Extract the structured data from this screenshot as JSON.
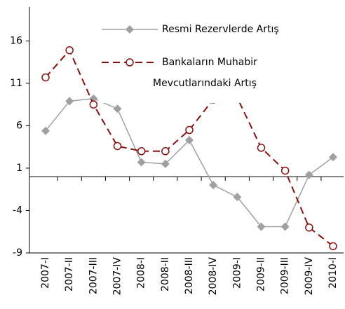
{
  "chart_data": {
    "type": "line",
    "categories": [
      "2007-I",
      "2007-II",
      "2007-III",
      "2007-IV",
      "2008-I",
      "2008-II",
      "2008-III",
      "2008-IV",
      "2009-I",
      "2009-II",
      "2009-III",
      "2009-IV",
      "2010-I"
    ],
    "series": [
      {
        "name": "Resmi Rezervlerde Artış",
        "color": "#a0a0a0",
        "values": [
          5.4,
          8.9,
          9.2,
          8.0,
          1.7,
          1.5,
          4.3,
          -1.0,
          -2.4,
          -5.9,
          -5.9,
          0.2,
          2.3
        ]
      },
      {
        "name": "Bankaların Muhabir Mevcutlarındaki Artış",
        "color": "#8b1010",
        "values": [
          11.7,
          14.9,
          8.5,
          3.6,
          3.0,
          3.0,
          5.5,
          9.1,
          9.3,
          3.4,
          0.7,
          -6.0,
          -8.2
        ]
      }
    ],
    "ylim": [
      -9,
      20
    ],
    "yticks": [
      -9,
      -4,
      1,
      6,
      11,
      16
    ]
  }
}
